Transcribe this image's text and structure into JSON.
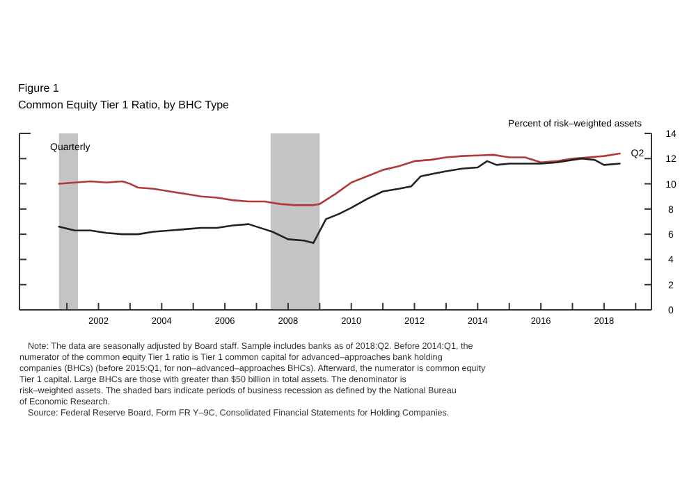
{
  "chart_data": {
    "type": "line",
    "title": "Figure 1",
    "subtitle": "Common Equity Tier 1 Ratio, by BHC Type",
    "ylabel": "Percent of risk–weighted assets",
    "xlim": [
      1999.5,
      2019.5
    ],
    "ylim": [
      0,
      14
    ],
    "xticks": [
      {
        "value": 2001,
        "label": null
      },
      {
        "value": 2002,
        "label": "2002"
      },
      {
        "value": 2003,
        "label": null
      },
      {
        "value": 2004,
        "label": "2004"
      },
      {
        "value": 2005,
        "label": null
      },
      {
        "value": 2006,
        "label": "2006"
      },
      {
        "value": 2007,
        "label": null
      },
      {
        "value": 2008,
        "label": "2008"
      },
      {
        "value": 2009,
        "label": null
      },
      {
        "value": 2010,
        "label": "2010"
      },
      {
        "value": 2011,
        "label": null
      },
      {
        "value": 2012,
        "label": "2012"
      },
      {
        "value": 2013,
        "label": null
      },
      {
        "value": 2014,
        "label": "2014"
      },
      {
        "value": 2015,
        "label": null
      },
      {
        "value": 2016,
        "label": "2016"
      },
      {
        "value": 2017,
        "label": null
      },
      {
        "value": 2018,
        "label": "2018"
      },
      {
        "value": 2019,
        "label": null
      }
    ],
    "yticks": [
      0,
      2,
      4,
      6,
      8,
      10,
      12,
      14
    ],
    "grid": false,
    "marker": "none",
    "line_style": "solid",
    "bands": [
      {
        "axis": "x",
        "from": 2000.75,
        "to": 2001.35,
        "color": "#c4c4c4"
      },
      {
        "axis": "x",
        "from": 2007.45,
        "to": 2009.0,
        "color": "#c4c4c4"
      }
    ],
    "series": [
      {
        "color": "#b03a3a",
        "x": [
          2000.75,
          2001.25,
          2001.75,
          2002.25,
          2002.75,
          2003.0,
          2003.25,
          2003.75,
          2004.25,
          2004.75,
          2005.25,
          2005.75,
          2006.25,
          2006.75,
          2007.25,
          2007.75,
          2008.25,
          2008.75,
          2009.0,
          2009.5,
          2010.0,
          2010.5,
          2011.0,
          2011.5,
          2012.0,
          2012.5,
          2013.0,
          2013.5,
          2014.0,
          2014.5,
          2015.0,
          2015.5,
          2016.0,
          2016.5,
          2017.0,
          2017.5,
          2018.0,
          2018.5
        ],
        "values": [
          10.0,
          10.1,
          10.2,
          10.1,
          10.2,
          10.0,
          9.7,
          9.6,
          9.4,
          9.2,
          9.0,
          8.9,
          8.7,
          8.6,
          8.6,
          8.4,
          8.3,
          8.3,
          8.4,
          9.2,
          10.1,
          10.6,
          11.1,
          11.4,
          11.8,
          11.9,
          12.1,
          12.2,
          12.25,
          12.3,
          12.1,
          12.1,
          11.7,
          11.8,
          12.0,
          12.1,
          12.2,
          12.4
        ]
      },
      {
        "color": "#222222",
        "x": [
          2000.75,
          2001.25,
          2001.75,
          2002.25,
          2002.75,
          2003.25,
          2003.75,
          2004.25,
          2004.75,
          2005.25,
          2005.75,
          2006.25,
          2006.75,
          2007.25,
          2007.5,
          2008.0,
          2008.5,
          2008.8,
          2009.2,
          2009.6,
          2010.0,
          2010.5,
          2011.0,
          2011.5,
          2011.9,
          2012.2,
          2012.6,
          2013.0,
          2013.5,
          2014.0,
          2014.3,
          2014.6,
          2015.0,
          2015.5,
          2016.0,
          2016.5,
          2017.0,
          2017.3,
          2017.7,
          2018.0,
          2018.5
        ],
        "values": [
          6.6,
          6.3,
          6.3,
          6.1,
          6.0,
          6.0,
          6.2,
          6.3,
          6.4,
          6.5,
          6.5,
          6.7,
          6.8,
          6.4,
          6.2,
          5.6,
          5.5,
          5.3,
          7.2,
          7.6,
          8.1,
          8.8,
          9.4,
          9.6,
          9.8,
          10.6,
          10.8,
          11.0,
          11.2,
          11.3,
          11.8,
          11.5,
          11.6,
          11.6,
          11.6,
          11.7,
          11.9,
          12.0,
          11.9,
          11.5,
          11.6
        ]
      }
    ],
    "annotations": [
      "Quarterly",
      {
        "text": "Q2",
        "x": 2018.5,
        "y": 12.4
      },
      "Note: The data are seasonally adjusted by Board staff. Sample includes banks as of 2018:Q2.  Before 2014:Q1, the numerator of the common equity Tier 1 ratio is Tier 1 common capital for advanced–approaches bank holding companies (BHCs) (before 2015:Q1, for non–advanced–approaches BHCs).  Afterward, the numerator is common equity Tier 1 capital. Large BHCs are those with greater than $50 billion in total assets. The denominator is risk–weighted assets. The shaded bars indicate periods of business recession as defined by the National Bureau of Economic Research.",
      "Source:  Federal Reserve Board, Form FR Y–9C, Consolidated Financial Statements for Holding Companies."
    ]
  }
}
